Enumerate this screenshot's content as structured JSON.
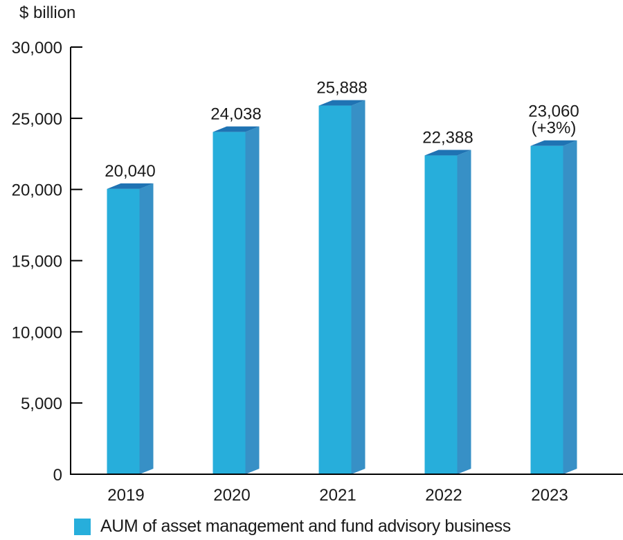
{
  "chart_data": {
    "type": "bar",
    "title": "",
    "ylabel": "$ billion",
    "xlabel": "",
    "categories": [
      "2019",
      "2020",
      "2021",
      "2022",
      "2023"
    ],
    "series": [
      {
        "name": "AUM of asset management and fund advisory business",
        "values": [
          20040,
          24038,
          25888,
          22388,
          23060
        ],
        "data_labels": [
          "20,040",
          "24,038",
          "25,888",
          "22,388",
          "23,060"
        ],
        "annotations": [
          "",
          "",
          "",
          "",
          "(+3%)"
        ]
      }
    ],
    "ylim": [
      0,
      30000
    ],
    "yticks": [
      0,
      5000,
      10000,
      15000,
      20000,
      25000,
      30000
    ],
    "ytick_labels": [
      "0",
      "5,000",
      "10,000",
      "15,000",
      "20,000",
      "25,000",
      "30,000"
    ],
    "grid": false,
    "legend": "bottom-left",
    "style": "3d-bar"
  },
  "colors": {
    "bar_front": "#27aedb",
    "bar_side": "#3790c6",
    "bar_top": "#1f73b3",
    "axis": "#000000",
    "text": "#1a1a1a"
  }
}
